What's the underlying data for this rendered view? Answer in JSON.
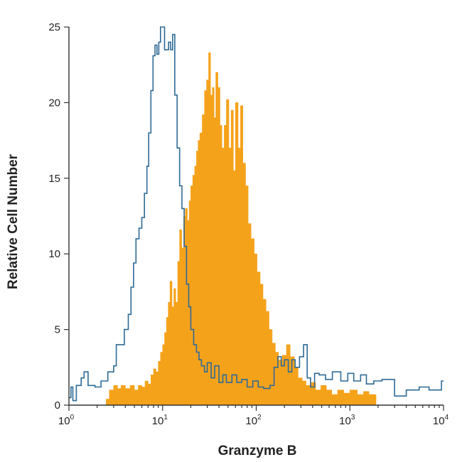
{
  "chart_data": {
    "type": "histogram",
    "xlabel": "Granzyme B",
    "ylabel": "Relative Cell Number",
    "x_scale": "log",
    "xlim": [
      1,
      10000
    ],
    "ylim": [
      0,
      25
    ],
    "x_ticks": [
      {
        "base": "10",
        "exp": "0",
        "value": 1
      },
      {
        "base": "10",
        "exp": "1",
        "value": 10
      },
      {
        "base": "10",
        "exp": "2",
        "value": 100
      },
      {
        "base": "10",
        "exp": "3",
        "value": 1000
      },
      {
        "base": "10",
        "exp": "4",
        "value": 10000
      }
    ],
    "y_ticks": [
      0,
      5,
      10,
      15,
      20,
      25
    ],
    "grid": false,
    "legend": "none",
    "series": [
      {
        "style": "outline",
        "color": "#2e6a96",
        "points": [
          [
            1.0,
            0.5
          ],
          [
            1.05,
            1.2
          ],
          [
            1.1,
            0.3
          ],
          [
            1.2,
            1.3
          ],
          [
            1.35,
            1.8
          ],
          [
            1.45,
            2.2
          ],
          [
            1.6,
            1.3
          ],
          [
            1.9,
            1.2
          ],
          [
            2.2,
            1.6
          ],
          [
            2.6,
            2.2
          ],
          [
            3.0,
            2.6
          ],
          [
            3.2,
            4.0
          ],
          [
            3.6,
            4.0
          ],
          [
            3.9,
            5.0
          ],
          [
            4.3,
            6.0
          ],
          [
            4.6,
            7.8
          ],
          [
            4.9,
            9.4
          ],
          [
            5.2,
            11.0
          ],
          [
            5.6,
            11.7
          ],
          [
            6.0,
            12.4
          ],
          [
            6.4,
            14.0
          ],
          [
            6.8,
            15.8
          ],
          [
            7.1,
            18.0
          ],
          [
            7.5,
            20.8
          ],
          [
            7.9,
            23.1
          ],
          [
            8.3,
            23.8
          ],
          [
            8.7,
            23.2
          ],
          [
            9.1,
            24.0
          ],
          [
            9.5,
            25.0
          ],
          [
            10.0,
            25.0
          ],
          [
            10.5,
            23.5
          ],
          [
            11.0,
            23.5
          ],
          [
            11.6,
            24.0
          ],
          [
            12.2,
            23.5
          ],
          [
            12.8,
            24.5
          ],
          [
            13.5,
            20.5
          ],
          [
            14.3,
            17.0
          ],
          [
            15.2,
            14.5
          ],
          [
            16.1,
            13.0
          ],
          [
            17.0,
            10.5
          ],
          [
            18.0,
            8.0
          ],
          [
            19.0,
            6.5
          ],
          [
            20.0,
            5.0
          ],
          [
            21.5,
            4.0
          ],
          [
            23.0,
            3.5
          ],
          [
            24.5,
            3.0
          ],
          [
            26.0,
            2.6
          ],
          [
            28.0,
            2.2
          ],
          [
            30.0,
            2.8
          ],
          [
            33.0,
            1.8
          ],
          [
            36.0,
            2.6
          ],
          [
            40.0,
            1.5
          ],
          [
            44.0,
            2.0
          ],
          [
            48.0,
            1.5
          ],
          [
            55.0,
            2.0
          ],
          [
            62.0,
            1.5
          ],
          [
            70.0,
            1.7
          ],
          [
            80.0,
            1.2
          ],
          [
            92.0,
            1.6
          ],
          [
            105.0,
            1.2
          ],
          [
            120.0,
            1.1
          ],
          [
            140.0,
            1.3
          ],
          [
            155.0,
            2.5
          ],
          [
            170.0,
            3.2
          ],
          [
            185.0,
            2.6
          ],
          [
            200.0,
            3.0
          ],
          [
            220.0,
            2.2
          ],
          [
            240.0,
            3.0
          ],
          [
            260.0,
            2.5
          ],
          [
            290.0,
            3.2
          ],
          [
            320.0,
            4.0
          ],
          [
            350.0,
            1.8
          ],
          [
            380.0,
            1.2
          ],
          [
            420.0,
            2.1
          ],
          [
            470.0,
            2.0
          ],
          [
            550.0,
            1.7
          ],
          [
            650.0,
            2.2
          ],
          [
            800.0,
            1.6
          ],
          [
            950.0,
            2.1
          ],
          [
            1100.0,
            1.6
          ],
          [
            1300.0,
            2.0
          ],
          [
            1500.0,
            1.4
          ],
          [
            1800.0,
            1.6
          ],
          [
            2200.0,
            1.7
          ],
          [
            2700.0,
            1.7
          ],
          [
            3000.0,
            0.6
          ],
          [
            4000.0,
            1.0
          ],
          [
            5500.0,
            1.2
          ],
          [
            7000.0,
            1.0
          ],
          [
            8500.0,
            1.0
          ],
          [
            9500.0,
            1.6
          ],
          [
            10000.0,
            1.6
          ]
        ]
      },
      {
        "style": "filled",
        "color": "#f5a21b",
        "points": [
          [
            2.5,
            0.4
          ],
          [
            2.7,
            1.0
          ],
          [
            3.0,
            1.3
          ],
          [
            3.3,
            1.1
          ],
          [
            3.6,
            1.3
          ],
          [
            4.0,
            1.1
          ],
          [
            4.5,
            1.3
          ],
          [
            5.0,
            1.0
          ],
          [
            5.5,
            1.3
          ],
          [
            6.0,
            1.2
          ],
          [
            6.5,
            1.6
          ],
          [
            7.0,
            1.4
          ],
          [
            7.5,
            2.0
          ],
          [
            8.0,
            2.4
          ],
          [
            8.5,
            2.2
          ],
          [
            9.0,
            2.9
          ],
          [
            9.5,
            3.5
          ],
          [
            10.0,
            4.0
          ],
          [
            10.5,
            4.8
          ],
          [
            11.0,
            5.8
          ],
          [
            11.5,
            6.8
          ],
          [
            12.0,
            8.2
          ],
          [
            12.6,
            6.5
          ],
          [
            13.2,
            7.7
          ],
          [
            13.8,
            6.8
          ],
          [
            14.5,
            9.5
          ],
          [
            15.2,
            11.6
          ],
          [
            16.0,
            10.4
          ],
          [
            16.8,
            12.5
          ],
          [
            17.5,
            13.0
          ],
          [
            18.4,
            12.2
          ],
          [
            19.2,
            13.5
          ],
          [
            20.0,
            14.5
          ],
          [
            21.0,
            15.2
          ],
          [
            22.0,
            15.8
          ],
          [
            23.0,
            16.8
          ],
          [
            24.0,
            17.5
          ],
          [
            25.0,
            18.0
          ],
          [
            26.5,
            19.2
          ],
          [
            28.0,
            20.8
          ],
          [
            29.5,
            21.5
          ],
          [
            31.0,
            23.3
          ],
          [
            32.5,
            20.5
          ],
          [
            34.0,
            21.0
          ],
          [
            35.5,
            19.0
          ],
          [
            37.0,
            22.0
          ],
          [
            39.0,
            21.0
          ],
          [
            41.0,
            18.5
          ],
          [
            43.0,
            17.0
          ],
          [
            45.5,
            18.5
          ],
          [
            48.0,
            20.2
          ],
          [
            51.0,
            17.0
          ],
          [
            54.0,
            19.5
          ],
          [
            57.0,
            15.5
          ],
          [
            60.0,
            20.0
          ],
          [
            64.0,
            17.0
          ],
          [
            68.0,
            19.8
          ],
          [
            72.0,
            16.0
          ],
          [
            77.0,
            14.5
          ],
          [
            82.0,
            12.0
          ],
          [
            88.0,
            11.0
          ],
          [
            95.0,
            10.0
          ],
          [
            102.0,
            8.8
          ],
          [
            110.0,
            8.0
          ],
          [
            118.0,
            7.0
          ],
          [
            127.0,
            6.2
          ],
          [
            137.0,
            5.0
          ],
          [
            148.0,
            4.1
          ],
          [
            160.0,
            3.5
          ],
          [
            173.0,
            3.0
          ],
          [
            190.0,
            3.3
          ],
          [
            210.0,
            4.0
          ],
          [
            230.0,
            3.2
          ],
          [
            255.0,
            2.5
          ],
          [
            280.0,
            1.8
          ],
          [
            310.0,
            1.6
          ],
          [
            340.0,
            1.3
          ],
          [
            380.0,
            1.5
          ],
          [
            430.0,
            1.0
          ],
          [
            490.0,
            1.3
          ],
          [
            560.0,
            1.0
          ],
          [
            640.0,
            0.7
          ],
          [
            740.0,
            1.0
          ],
          [
            860.0,
            0.8
          ],
          [
            1000.0,
            1.0
          ],
          [
            1200.0,
            0.7
          ],
          [
            1400.0,
            0.9
          ],
          [
            1600.0,
            0.7
          ],
          [
            1900.0,
            0.6
          ]
        ]
      }
    ]
  }
}
